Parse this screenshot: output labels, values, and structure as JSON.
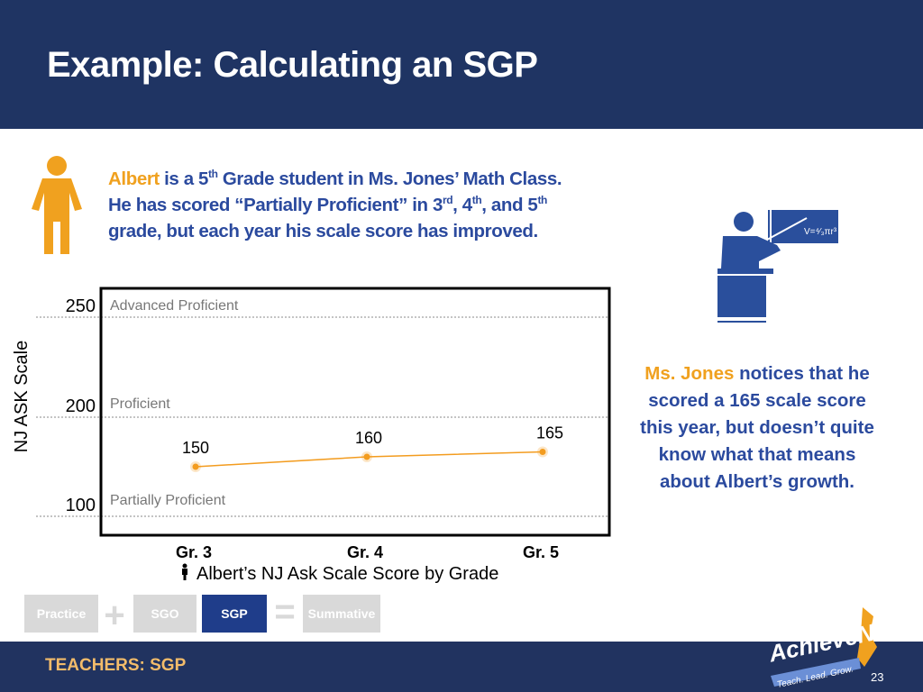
{
  "header": {
    "title": "Example: Calculating an SGP"
  },
  "intro": {
    "name": "Albert",
    "line1_rest": " is a 5",
    "sup1": "th",
    "line1_end": " Grade student in Ms. Jones’ Math Class.",
    "line2a": "He has scored “Partially Proficient” in 3",
    "sup2": "rd",
    "line2b": ", 4",
    "sup3": "th",
    "line2c": ", and 5",
    "sup4": "th",
    "line3": "grade, but each year his scale score has improved."
  },
  "note": {
    "name": "Ms. Jones",
    "rest": " notices that he scored a 165 scale score this year, but doesn’t quite know what that means about Albert’s growth."
  },
  "chart_data": {
    "type": "line",
    "ylabel": "NJ ASK Scale",
    "xlabel": "Albert’s NJ Ask Scale Score by Grade",
    "categories": [
      "Gr. 3",
      "Gr. 4",
      "Gr. 5"
    ],
    "values": [
      150,
      160,
      165
    ],
    "y_ticks": [
      100,
      200,
      250
    ],
    "bands": [
      "Advanced Proficient",
      "Proficient",
      "Partially Proficient"
    ],
    "series_color": "#f39c1f",
    "grid": true
  },
  "nav": {
    "items": [
      "Practice",
      "SGO",
      "SGP",
      "Summative"
    ],
    "plus": "+",
    "equals": "=",
    "active": "SGP"
  },
  "footer": {
    "label": "TEACHERS: SGP",
    "page": "23",
    "logo_text": "AchieveNJ",
    "logo_tagline": "Teach. Lead. Grow."
  },
  "colors": {
    "navy": "#1f3463",
    "orange": "#f0a11f",
    "blue_text": "#2b4a9e",
    "active_pill": "#1f3d8a"
  }
}
